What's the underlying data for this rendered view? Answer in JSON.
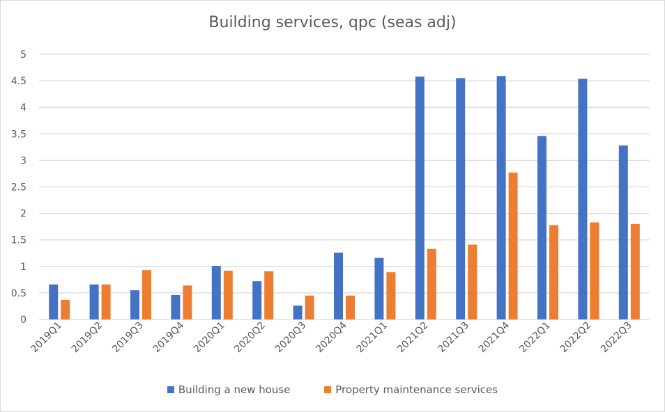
{
  "chart_data": {
    "type": "bar",
    "title": "Building services, qpc (seas adj)",
    "xlabel": "",
    "ylabel": "",
    "ylim": [
      0,
      5
    ],
    "yticks": [
      "0",
      "0.5",
      "1",
      "1.5",
      "2",
      "2.5",
      "3",
      "3.5",
      "4",
      "4.5",
      "5"
    ],
    "grid": true,
    "legend_position": "bottom",
    "categories": [
      "2019Q1",
      "2019Q2",
      "2019Q3",
      "2019Q4",
      "2020Q1",
      "2020Q2",
      "2020Q3",
      "2020Q4",
      "2021Q1",
      "2021Q2",
      "2021Q3",
      "2021Q4",
      "2022Q1",
      "2022Q2",
      "2022Q3"
    ],
    "series": [
      {
        "name": "Building a new house",
        "color": "#4472c4",
        "values": [
          0.66,
          0.66,
          0.55,
          0.46,
          1.01,
          0.72,
          0.26,
          1.26,
          1.16,
          4.58,
          4.55,
          4.59,
          3.46,
          4.54,
          3.28
        ]
      },
      {
        "name": "Property maintenance services",
        "color": "#ed7d31",
        "values": [
          0.37,
          0.66,
          0.93,
          0.64,
          0.92,
          0.91,
          0.45,
          0.45,
          0.89,
          1.33,
          1.41,
          2.77,
          1.78,
          1.83,
          1.8
        ]
      }
    ]
  }
}
